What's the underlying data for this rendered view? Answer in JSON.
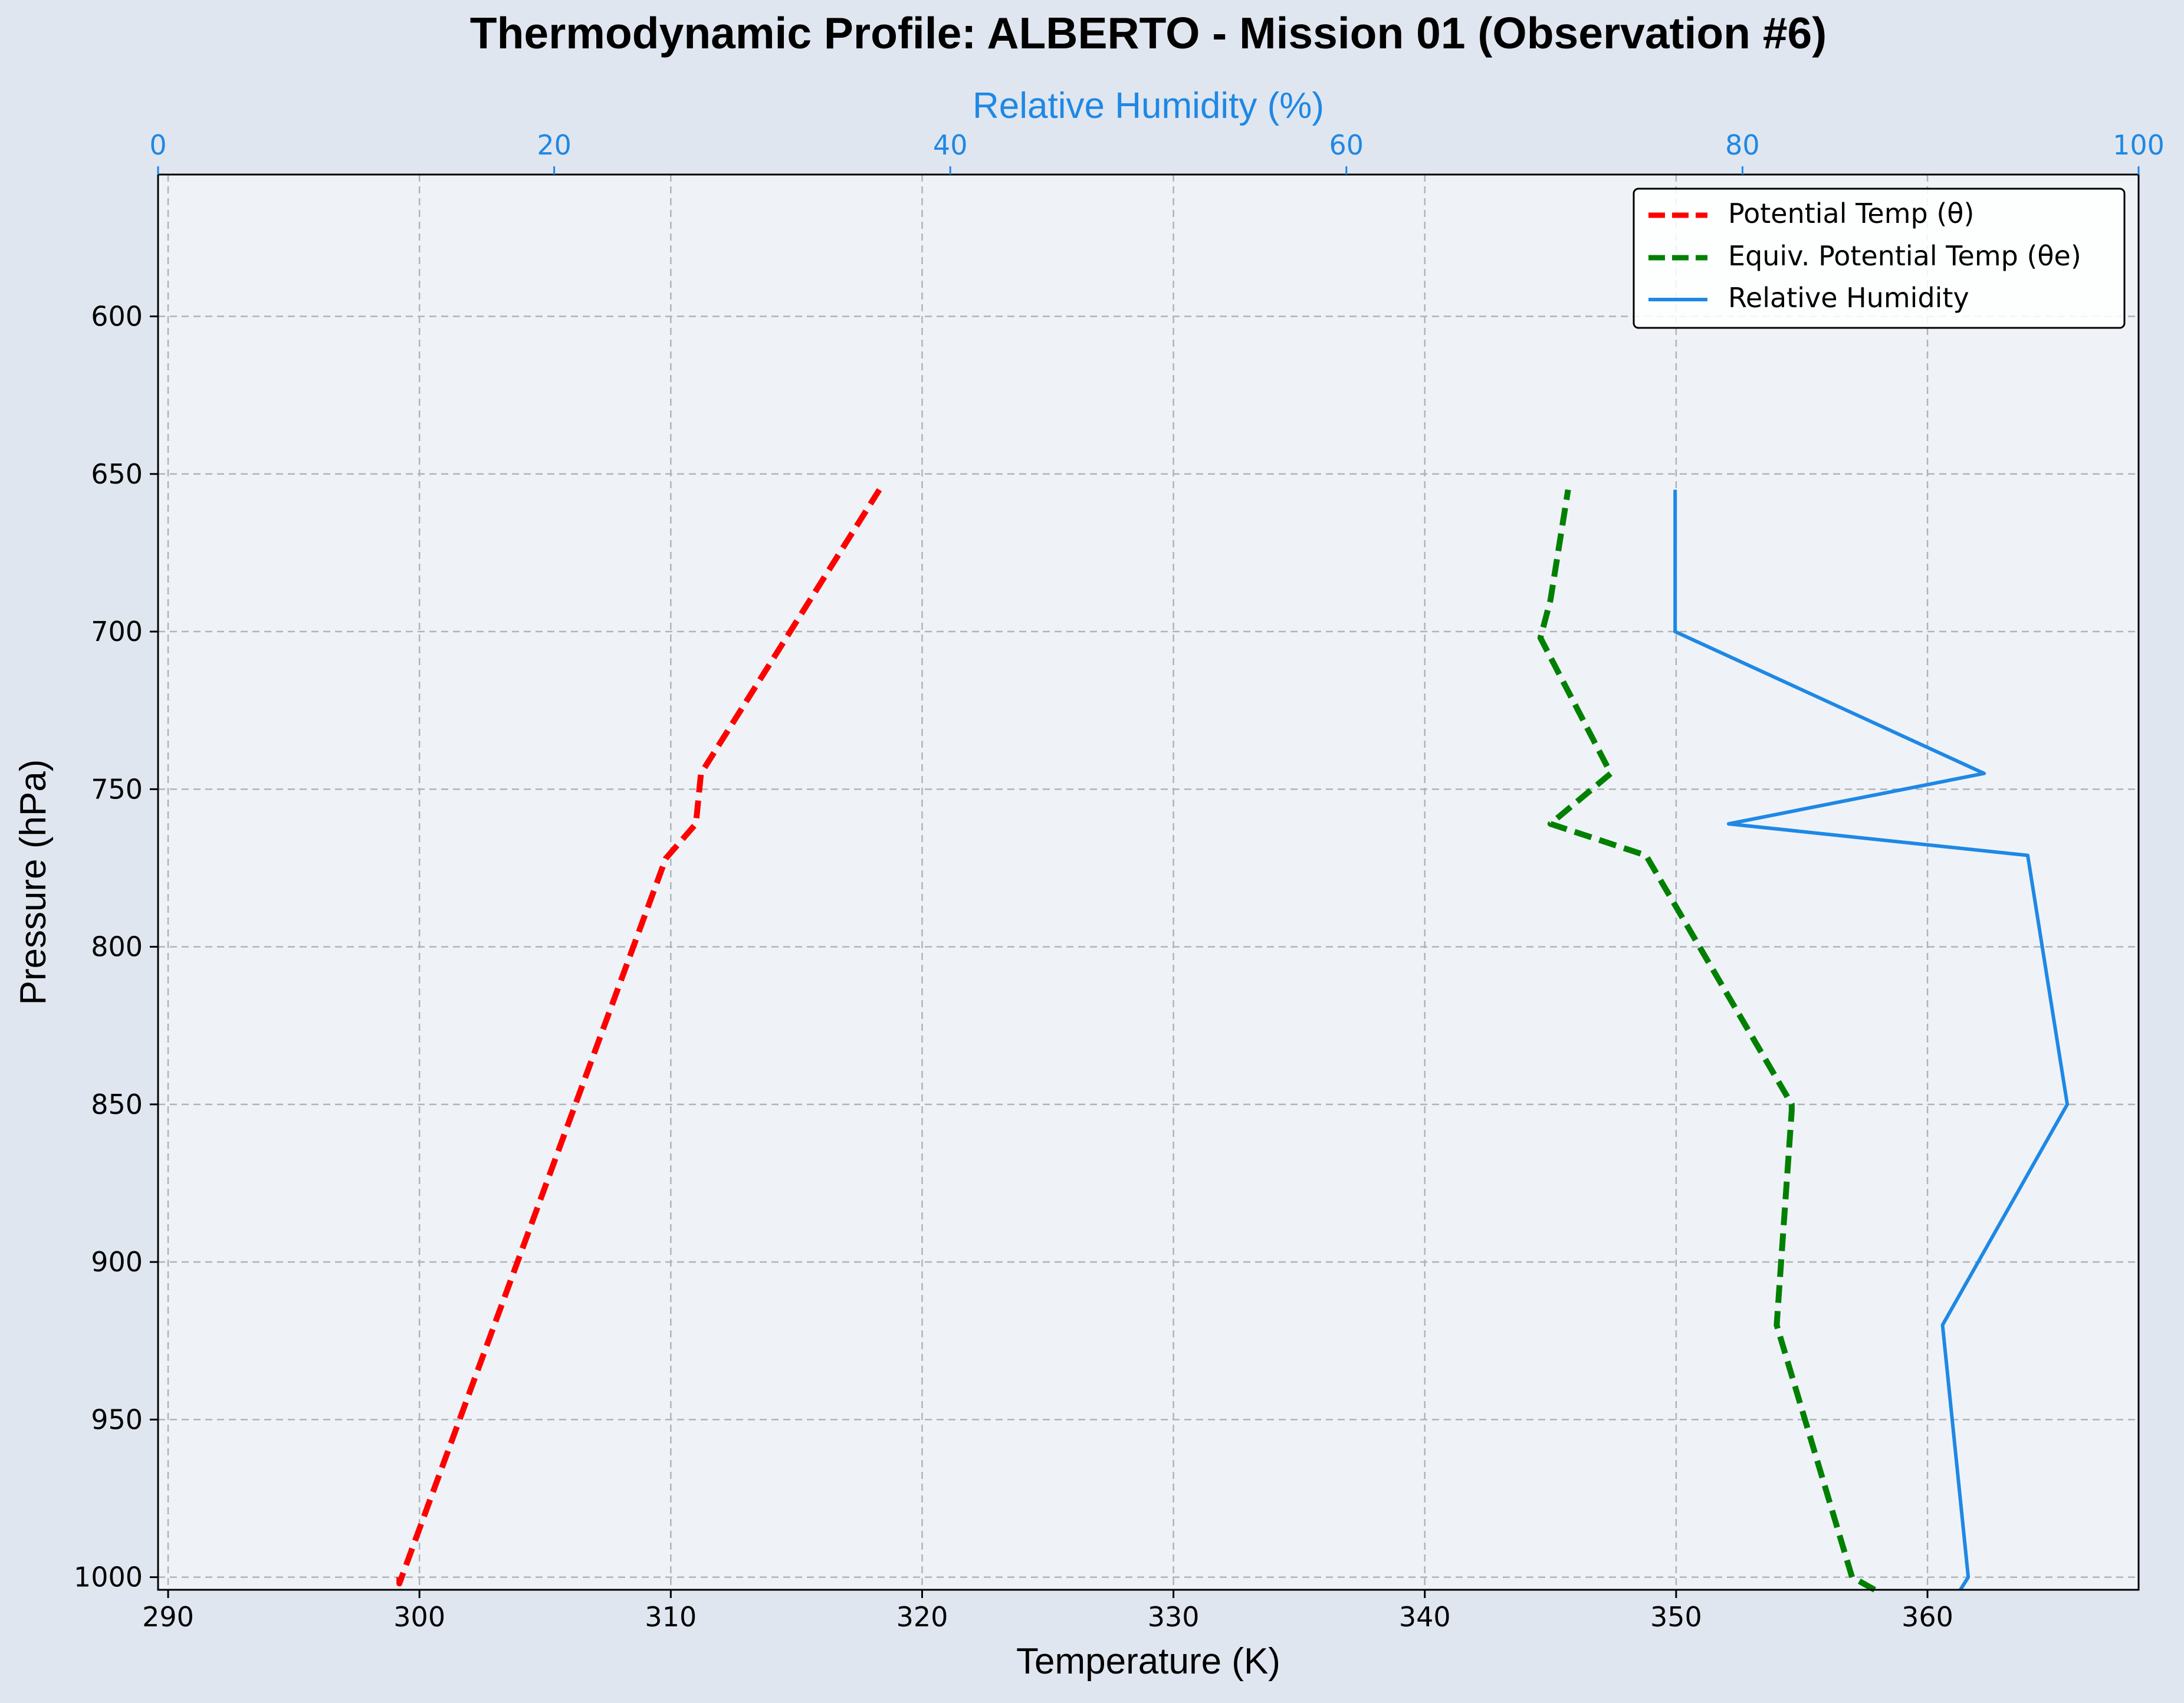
{
  "colors": {
    "background": "#e0e6ef",
    "plot_background": "#eff3f8",
    "theta": "#ff0000",
    "theta_e": "#008000",
    "rh": "#1e88e5",
    "grid": "#b0b4b8",
    "axis": "#000000"
  },
  "chart_data": {
    "type": "line",
    "title": "Thermodynamic Profile:  ALBERTO - Mission 01 (Observation #6)",
    "xlabel": "Temperature (K)",
    "ylabel": "Pressure (hPa)",
    "x2label": "Relative Humidity (%)",
    "xlim": [
      289.6,
      368.4
    ],
    "x2lim": [
      0,
      100
    ],
    "ylim": [
      1004,
      555
    ],
    "y_inverted": true,
    "grid": true,
    "legend_position": "top-right",
    "x_ticks": [
      290,
      300,
      310,
      320,
      330,
      340,
      350,
      360
    ],
    "x2_ticks": [
      0,
      20,
      40,
      60,
      80,
      100
    ],
    "y_ticks": [
      600,
      650,
      700,
      750,
      800,
      850,
      900,
      950,
      1000
    ],
    "series": [
      {
        "name": "Potential Temp (θ)",
        "axis": "bottom",
        "style": "dashed",
        "points": [
          {
            "x": 299.2,
            "y": 1000
          },
          {
            "x": 299.2,
            "y": 1002
          },
          {
            "x": 309.8,
            "y": 772
          },
          {
            "x": 311.0,
            "y": 761
          },
          {
            "x": 311.2,
            "y": 745
          },
          {
            "x": 318.3,
            "y": 655
          }
        ]
      },
      {
        "name": "Equiv. Potential Temp (θe)",
        "axis": "bottom",
        "style": "dashed",
        "points": [
          {
            "x": 357.9,
            "y": 1004
          },
          {
            "x": 357.0,
            "y": 1000
          },
          {
            "x": 354.0,
            "y": 920
          },
          {
            "x": 354.6,
            "y": 852
          },
          {
            "x": 354.6,
            "y": 850
          },
          {
            "x": 348.8,
            "y": 771
          },
          {
            "x": 345.0,
            "y": 761
          },
          {
            "x": 347.4,
            "y": 745
          },
          {
            "x": 344.6,
            "y": 702
          },
          {
            "x": 345.0,
            "y": 690
          },
          {
            "x": 345.7,
            "y": 655
          }
        ]
      },
      {
        "name": "Relative Humidity",
        "axis": "top",
        "style": "solid",
        "points": [
          {
            "x": 91.0,
            "y": 1004
          },
          {
            "x": 91.4,
            "y": 1000
          },
          {
            "x": 90.1,
            "y": 920
          },
          {
            "x": 96.4,
            "y": 850
          },
          {
            "x": 94.4,
            "y": 771
          },
          {
            "x": 79.3,
            "y": 761
          },
          {
            "x": 92.2,
            "y": 745
          },
          {
            "x": 76.6,
            "y": 700
          },
          {
            "x": 76.6,
            "y": 690
          },
          {
            "x": 76.6,
            "y": 655
          }
        ]
      }
    ]
  }
}
